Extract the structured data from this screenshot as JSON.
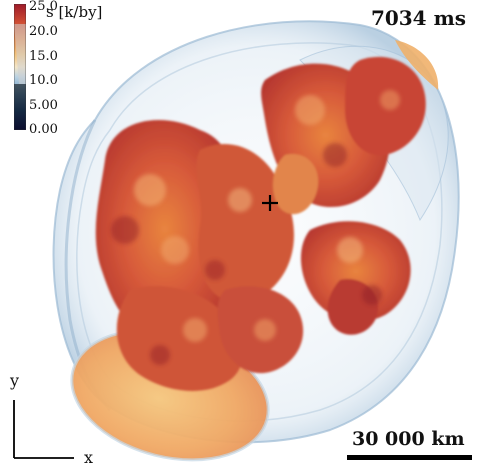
{
  "colorbar": {
    "title": "s [k/by]",
    "ticks": [
      "25.0",
      "20.0",
      "15.0",
      "10.0",
      "5.00",
      "0.00"
    ],
    "colors": [
      "#1b1f6b",
      "#2d5a92",
      "#6f9cc2",
      "#b9d2e3",
      "#f4e6c8",
      "#f3c27a",
      "#e7894e",
      "#cc4a33",
      "#9e1a29"
    ]
  },
  "time_label": "7034 ms",
  "scale_label": "30 000 km",
  "axes": {
    "x": "x",
    "y": "y"
  }
}
